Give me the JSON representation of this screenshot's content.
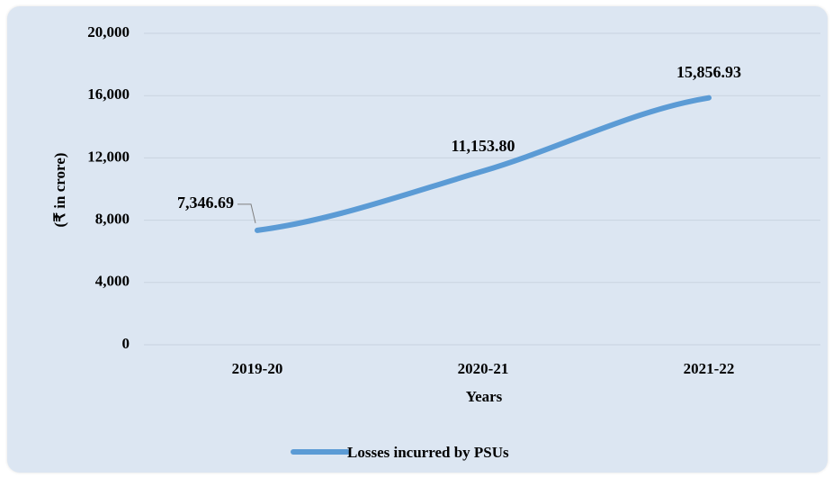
{
  "chart_data": {
    "type": "line",
    "categories": [
      "2019-20",
      "2020-21",
      "2021-22"
    ],
    "series": [
      {
        "name": "Losses incurred by PSUs",
        "values": [
          7346.69,
          11153.8,
          15856.93
        ],
        "color": "#5b9bd5"
      }
    ],
    "data_labels": [
      "7,346.69",
      "11,153.80",
      "15,856.93"
    ],
    "y_ticks": [
      0,
      4000,
      8000,
      12000,
      16000,
      20000
    ],
    "y_tick_labels": [
      "0",
      "4,000",
      "8,000",
      "12,000",
      "16,000",
      "20,000"
    ],
    "ylim": [
      0,
      20000
    ],
    "xlabel": "Years",
    "ylabel": "(₹ in crore)",
    "legend_position": "bottom",
    "grid": true,
    "background_color": "#dce6f2",
    "gridline_color": "#c9d3e0"
  }
}
